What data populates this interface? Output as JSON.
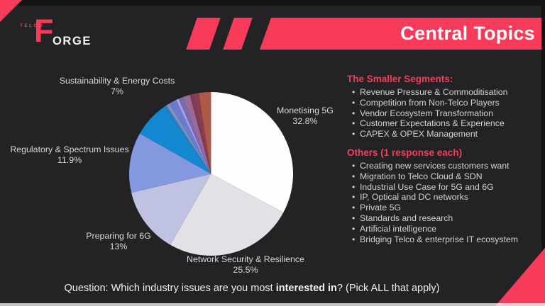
{
  "slide": {
    "logo": {
      "telco": "TELCO",
      "f_initial": "F",
      "orge": "ORGE"
    },
    "banner": {
      "title": "Central Topics"
    },
    "panel": {
      "smaller_segments": {
        "heading": "The Smaller Segments:",
        "items": [
          "Revenue Pressure & Commoditisation",
          "Competition from Non-Telco Players",
          "Vendor Ecosystem Transformation",
          "Customer Expectations & Experience",
          "CAPEX & OPEX Management"
        ]
      },
      "others": {
        "heading": "Others (1 response each)",
        "items": [
          "Creating new services customers want",
          "Migration to Telco Cloud & SDN",
          "Industrial Use Case for 5G and 6G",
          "IP, Optical and DC networks",
          "Private 5G",
          "Standards and research",
          "Artificial intelligence",
          "Bridging Telco & enterprise IT ecosystem"
        ]
      }
    },
    "question": {
      "prefix": "Question: Which industry issues are you most ",
      "emphasis": "interested in",
      "suffix": "? (Pick ALL that apply)"
    },
    "colors": {
      "accent_red": "#F93B5B",
      "background": "#232325",
      "frame_dark": "#141414",
      "label_gray": "#D8D8DA"
    }
  },
  "chart_data": {
    "type": "pie",
    "title": "Central Topics",
    "start_angle": "12-oclock",
    "direction": "clockwise",
    "legend_position": "labels-around-pie",
    "slices": [
      {
        "label": "Monetising 5G",
        "value": 32.8,
        "display": "32.8%",
        "color": "#FEFEFE"
      },
      {
        "label": "Network Security & Resilience",
        "value": 25.5,
        "display": "25.5%",
        "color": "#E1E1E6"
      },
      {
        "label": "Preparing for 6G",
        "value": 13,
        "display": "13%",
        "color": "#BFC2E0"
      },
      {
        "label": "Regulatory & Spectrum Issues",
        "value": 11.9,
        "display": "11.9%",
        "color": "#8398DE"
      },
      {
        "label": "Sustainability & Energy Costs",
        "value": 7,
        "display": "7%",
        "color": "#1489D1"
      },
      {
        "label": "",
        "value": 0.6,
        "display": "",
        "color": "#2F7CC0"
      },
      {
        "label": "",
        "value": 0.7,
        "display": "",
        "color": "#7D93B8"
      },
      {
        "label": "",
        "value": 1.5,
        "display": "",
        "color": "#6B7BD0"
      },
      {
        "label": "",
        "value": 0.5,
        "display": "",
        "color": "#A9A6DD"
      },
      {
        "label": "",
        "value": 0.9,
        "display": "",
        "color": "#7A68B8"
      },
      {
        "label": "",
        "value": 1.4,
        "display": "",
        "color": "#9C6B94"
      },
      {
        "label": "",
        "value": 0.7,
        "display": "",
        "color": "#7B3E58"
      },
      {
        "label": "",
        "value": 1.1,
        "display": "",
        "color": "#8E3C50"
      },
      {
        "label": "",
        "value": 2.4,
        "display": "",
        "color": "#AD5A49"
      }
    ]
  }
}
